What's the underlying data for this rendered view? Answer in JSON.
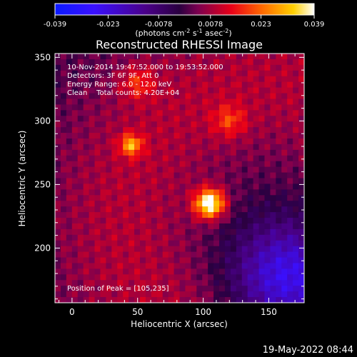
{
  "colorbar": {
    "tick_labels": [
      "-0.039",
      "-0.023",
      "-0.0078",
      "0.0078",
      "0.023",
      "0.039"
    ],
    "tick_values": [
      -0.039,
      -0.023,
      -0.0078,
      0.0078,
      0.023,
      0.039
    ],
    "range": [
      -0.039,
      0.039
    ],
    "unit_parts": [
      "(photons cm",
      "-2",
      " s",
      "-1",
      " asec",
      "-2",
      ")"
    ]
  },
  "chart_data": {
    "type": "heatmap",
    "title": "Reconstructed RHESSI Image",
    "xlabel": "Heliocentric X (arcsec)",
    "ylabel": "Heliocentric Y (arcsec)",
    "xlim": [
      -13,
      177
    ],
    "ylim": [
      157,
      353
    ],
    "xticks": [
      0,
      50,
      100,
      150
    ],
    "yticks": [
      200,
      250,
      300,
      350
    ],
    "colormap": "rhessi-thermal (blue-purple-red-orange-yellow-white)",
    "annotations": [
      "10-Nov-2014 19:47:52.000 to 19:53:52.000",
      "Detectors: 3F 6F 9F, Att 0",
      "Energy Range: 6.0 - 12.0 keV",
      "Clean    Total counts: 4.20E+04"
    ],
    "peak_label": "Position of Peak = [105,235]",
    "peak": [
      105,
      235
    ],
    "features": [
      {
        "x": 105,
        "y": 235,
        "amplitude": 0.039,
        "sigma": 8
      },
      {
        "x": 45,
        "y": 281,
        "amplitude": 0.022,
        "sigma": 6
      },
      {
        "x": 50,
        "y": 330,
        "amplitude": 0.012,
        "sigma": 9
      },
      {
        "x": 120,
        "y": 300,
        "amplitude": 0.012,
        "sigma": 9
      }
    ],
    "negative_region": {
      "x": 165,
      "y": 175,
      "amplitude": -0.028,
      "sigma": 30
    }
  },
  "footer_timestamp": "19-May-2022 08:44"
}
